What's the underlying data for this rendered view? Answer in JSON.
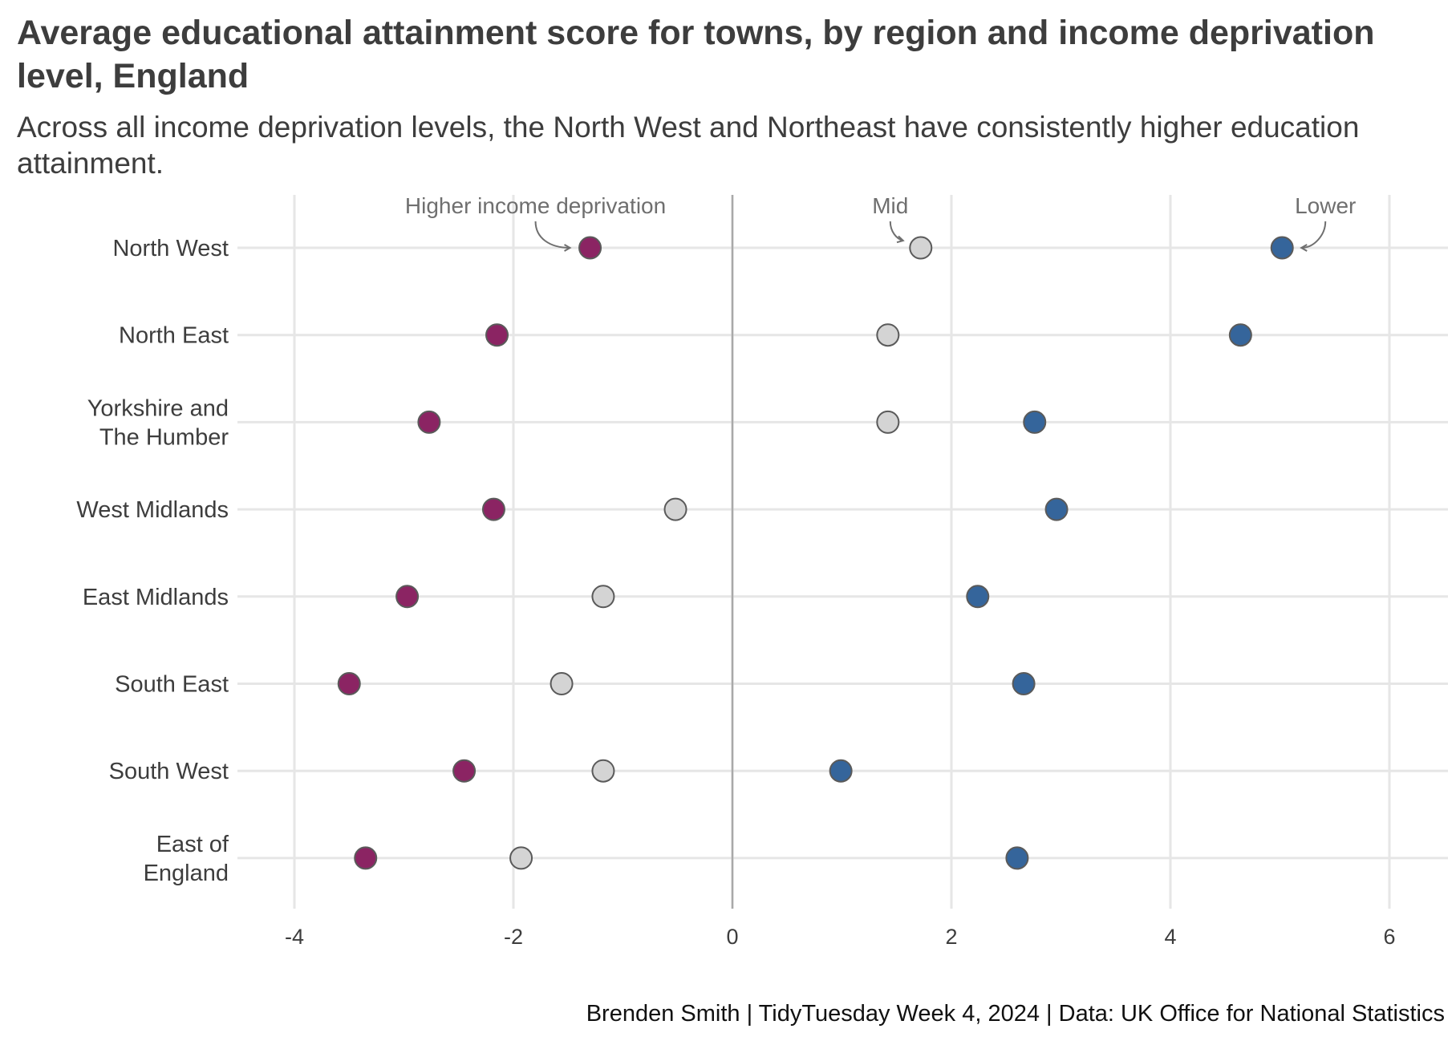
{
  "title": "Average educational attainment score for towns, by region and income deprivation level, England",
  "subtitle": "Across all income deprivation levels, the North West and Northeast have consistently higher education attainment.",
  "caption": "Brenden Smith | TidyTuesday Week 4, 2024 | Data: UK Office for National Statistics",
  "chart_data": {
    "type": "scatter",
    "xlim": [
      -4.5,
      6.5
    ],
    "xticks": [
      -4,
      -2,
      0,
      2,
      4,
      6
    ],
    "xtick_labels": [
      "-4",
      "-2",
      "0",
      "2",
      "4",
      "6"
    ],
    "grid": true,
    "legend": "none",
    "categories": [
      "North West",
      "North East",
      "Yorkshire and The Humber",
      "West Midlands",
      "East Midlands",
      "South East",
      "South West",
      "East of England"
    ],
    "category_labels": [
      [
        "North West"
      ],
      [
        "North East"
      ],
      [
        "Yorkshire and",
        "The Humber"
      ],
      [
        "West Midlands"
      ],
      [
        "East Midlands"
      ],
      [
        "South East"
      ],
      [
        "South West"
      ],
      [
        "East of",
        "England"
      ]
    ],
    "series": [
      {
        "key": "higher",
        "color": "#8b2463",
        "values": [
          -1.3,
          -2.15,
          -2.77,
          -2.18,
          -2.97,
          -3.5,
          -2.45,
          -3.35
        ]
      },
      {
        "key": "mid",
        "color": "#d4d4d4",
        "values": [
          1.72,
          1.42,
          1.42,
          -0.52,
          -1.18,
          -1.56,
          -1.18,
          -1.93
        ]
      },
      {
        "key": "lower",
        "color": "#35659b",
        "values": [
          5.02,
          4.64,
          2.76,
          2.96,
          2.24,
          2.66,
          0.99,
          2.6
        ]
      }
    ],
    "annotations": [
      {
        "series": "higher",
        "text": "Higher income deprivation"
      },
      {
        "series": "mid",
        "text": "Mid"
      },
      {
        "series": "lower",
        "text": "Lower"
      }
    ]
  }
}
